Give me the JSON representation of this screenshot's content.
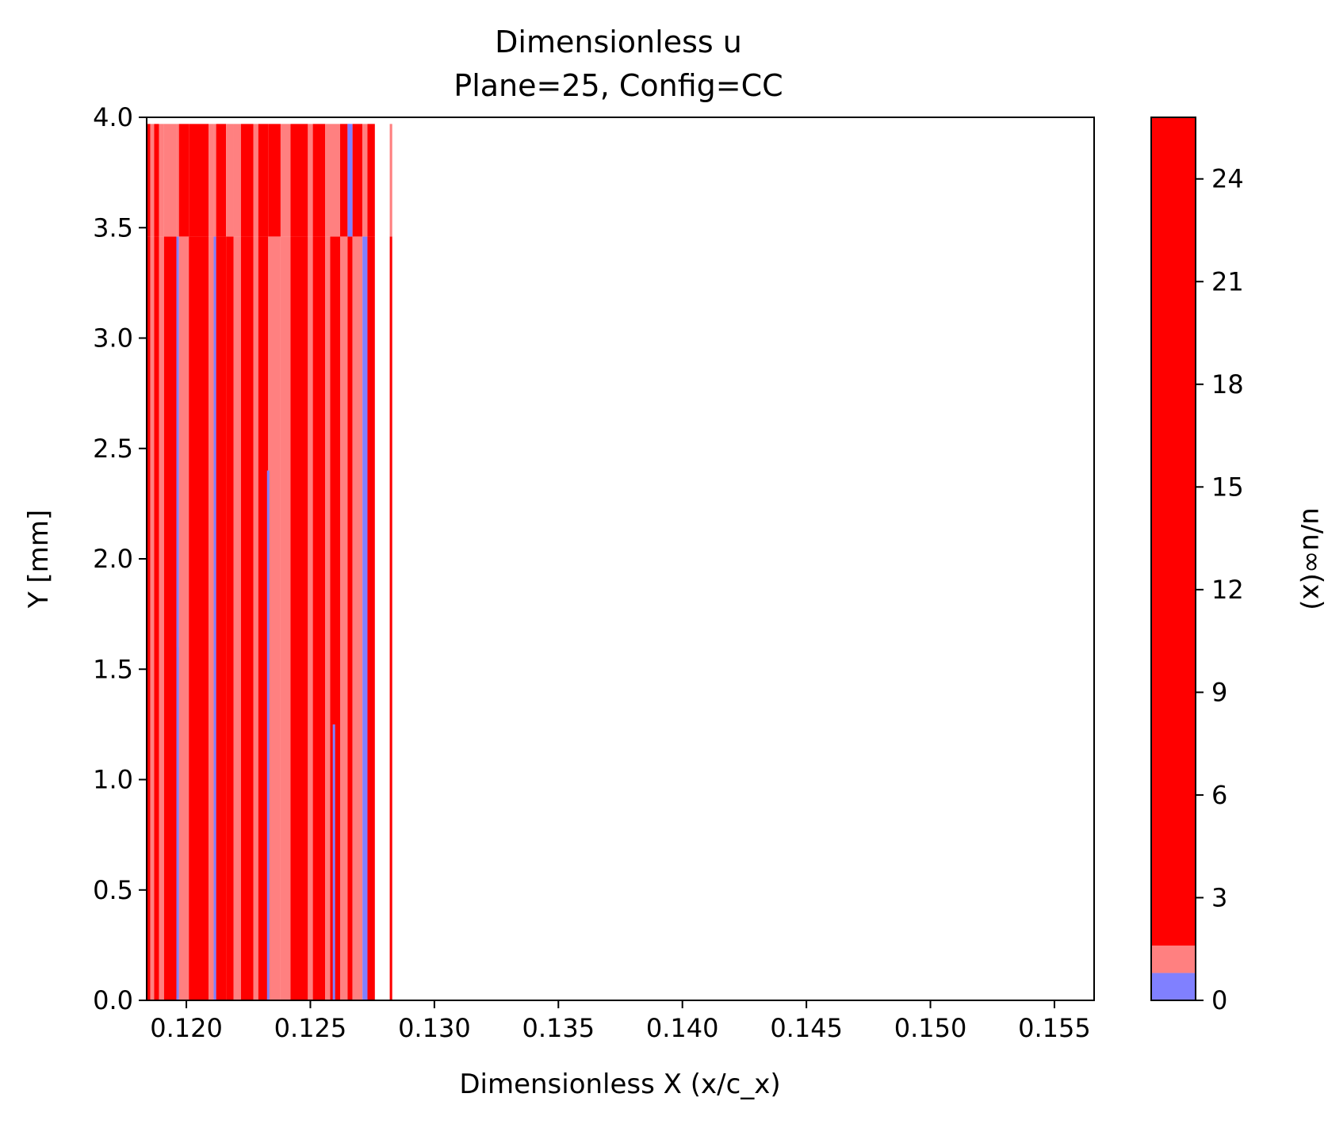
{
  "chart_data": {
    "type": "heatmap",
    "title_line1": "Dimensionless u",
    "title_line2": "Plane=25, Config=CC",
    "xlabel": "Dimensionless X (x/c_x)",
    "ylabel": "Y [mm]",
    "colorbar_label": "u/u∞(x)",
    "xlim": [
      0.1184,
      0.1566
    ],
    "ylim": [
      0,
      4
    ],
    "x_ticks": [
      "0.120",
      "0.125",
      "0.130",
      "0.135",
      "0.140",
      "0.145",
      "0.150",
      "0.155"
    ],
    "y_ticks": [
      "0.0",
      "0.5",
      "1.0",
      "1.5",
      "2.0",
      "2.5",
      "3.0",
      "3.5",
      "4.0"
    ],
    "colorbar_ticks": [
      "0",
      "3",
      "6",
      "9",
      "12",
      "15",
      "18",
      "21",
      "24"
    ],
    "colorbar_range": [
      0,
      25.8
    ],
    "colorbar_levels": [
      {
        "from": 0,
        "to": 0.8,
        "color": "#8080ff"
      },
      {
        "from": 0.8,
        "to": 1.6,
        "color": "#ff8080"
      },
      {
        "from": 1.6,
        "to": 25.8,
        "color": "#ff0000"
      }
    ],
    "data_extent_y": [
      0,
      3.97
    ],
    "band_split_y": 3.46,
    "colors": {
      "high": "#ff0000",
      "mid": "#ff8080",
      "low": "#8080ff"
    },
    "columns": [
      {
        "x0": 0.1184,
        "x1": 0.11855,
        "lower": "high",
        "upper": "high"
      },
      {
        "x0": 0.11855,
        "x1": 0.1187,
        "lower": "mid",
        "upper": "mid"
      },
      {
        "x0": 0.1187,
        "x1": 0.1189,
        "lower": "high",
        "upper": "high"
      },
      {
        "x0": 0.1189,
        "x1": 0.1191,
        "lower": "mid",
        "upper": "mid"
      },
      {
        "x0": 0.1191,
        "x1": 0.1196,
        "lower": "high",
        "upper": "mid"
      },
      {
        "x0": 0.1196,
        "x1": 0.1197,
        "lower": "low",
        "upper": "mid"
      },
      {
        "x0": 0.1197,
        "x1": 0.1201,
        "lower": "mid",
        "upper": "high"
      },
      {
        "x0": 0.1201,
        "x1": 0.1209,
        "lower": "high",
        "upper": "high"
      },
      {
        "x0": 0.1209,
        "x1": 0.1211,
        "lower": "mid",
        "upper": "mid"
      },
      {
        "x0": 0.1211,
        "x1": 0.1212,
        "lower": "low",
        "upper": "mid"
      },
      {
        "x0": 0.1212,
        "x1": 0.1216,
        "lower": "high",
        "upper": "high"
      },
      {
        "x0": 0.1216,
        "x1": 0.1219,
        "lower": "high",
        "upper": "mid"
      },
      {
        "x0": 0.1219,
        "x1": 0.1222,
        "lower": "mid",
        "upper": "mid"
      },
      {
        "x0": 0.1222,
        "x1": 0.1227,
        "lower": "high",
        "upper": "high"
      },
      {
        "x0": 0.1227,
        "x1": 0.1229,
        "lower": "mid",
        "upper": "mid"
      },
      {
        "x0": 0.1229,
        "x1": 0.1233,
        "lower": "high",
        "upper": "high"
      },
      {
        "x0": 0.1233,
        "x1": 0.1238,
        "lower": "mid",
        "upper": "high"
      },
      {
        "x0": 0.1238,
        "x1": 0.1242,
        "lower": "mid",
        "upper": "mid"
      },
      {
        "x0": 0.1242,
        "x1": 0.1249,
        "lower": "high",
        "upper": "high"
      },
      {
        "x0": 0.1249,
        "x1": 0.1251,
        "lower": "mid",
        "upper": "mid"
      },
      {
        "x0": 0.1251,
        "x1": 0.1256,
        "lower": "high",
        "upper": "high"
      },
      {
        "x0": 0.1256,
        "x1": 0.1258,
        "lower": "mid",
        "upper": "mid"
      },
      {
        "x0": 0.1258,
        "x1": 0.1262,
        "lower": "high",
        "upper": "mid"
      },
      {
        "x0": 0.1262,
        "x1": 0.1265,
        "lower": "mid",
        "upper": "high"
      },
      {
        "x0": 0.1265,
        "x1": 0.1267,
        "lower": "high",
        "upper": "low"
      },
      {
        "x0": 0.1267,
        "x1": 0.1271,
        "lower": "mid",
        "upper": "high"
      },
      {
        "x0": 0.1271,
        "x1": 0.1273,
        "lower": "low",
        "upper": "mid"
      },
      {
        "x0": 0.1273,
        "x1": 0.1276,
        "lower": "high",
        "upper": "high"
      },
      {
        "x0": 0.1276,
        "x1": 0.1282,
        "lower": "none",
        "upper": "none"
      },
      {
        "x0": 0.1282,
        "x1": 0.1283,
        "lower": "high",
        "upper": "mid"
      }
    ],
    "blue_streaks": [
      {
        "x": 0.11965,
        "y0": 0.0,
        "y1": 1.6
      },
      {
        "x": 0.12115,
        "y0": 0.0,
        "y1": 3.4
      },
      {
        "x": 0.1233,
        "y0": 0.0,
        "y1": 2.4
      },
      {
        "x": 0.12595,
        "y0": 0.0,
        "y1": 1.25
      },
      {
        "x": 0.12655,
        "y0": 3.55,
        "y1": 3.97
      },
      {
        "x": 0.12725,
        "y0": 0.0,
        "y1": 3.05
      }
    ],
    "grid": false,
    "legend": "colorbar-right"
  }
}
